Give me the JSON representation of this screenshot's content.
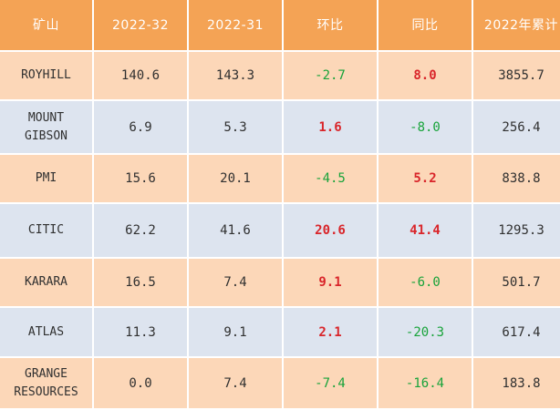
{
  "table": {
    "headers": [
      "矿山",
      "2022-32",
      "2022-31",
      "环比",
      "同比",
      "2022年累计"
    ],
    "rows": [
      {
        "mine": [
          "ROYHILL"
        ],
        "w32": "140.6",
        "w31": "143.3",
        "wow": "-2.7",
        "wow_sign": "neg",
        "yoy": "8.0",
        "yoy_sign": "pos",
        "ytd": "3855.7"
      },
      {
        "mine": [
          "MOUNT",
          "GIBSON"
        ],
        "w32": "6.9",
        "w31": "5.3",
        "wow": "1.6",
        "wow_sign": "pos",
        "yoy": "-8.0",
        "yoy_sign": "neg",
        "ytd": "256.4"
      },
      {
        "mine": [
          "PMI"
        ],
        "w32": "15.6",
        "w31": "20.1",
        "wow": "-4.5",
        "wow_sign": "neg",
        "yoy": "5.2",
        "yoy_sign": "pos",
        "ytd": "838.8"
      },
      {
        "mine": [
          "CITIC"
        ],
        "w32": "62.2",
        "w31": "41.6",
        "wow": "20.6",
        "wow_sign": "pos",
        "yoy": "41.4",
        "yoy_sign": "pos",
        "ytd": "1295.3"
      },
      {
        "mine": [
          "KARARA"
        ],
        "w32": "16.5",
        "w31": "7.4",
        "wow": "9.1",
        "wow_sign": "pos",
        "yoy": "-6.0",
        "yoy_sign": "neg",
        "ytd": "501.7"
      },
      {
        "mine": [
          "ATLAS"
        ],
        "w32": "11.3",
        "w31": "9.1",
        "wow": "2.1",
        "wow_sign": "pos",
        "yoy": "-20.3",
        "yoy_sign": "neg",
        "ytd": "617.4"
      },
      {
        "mine": [
          "GRANGE",
          "RESOURCES"
        ],
        "w32": "0.0",
        "w31": "7.4",
        "wow": "-7.4",
        "wow_sign": "neg",
        "yoy": "-16.4",
        "yoy_sign": "neg",
        "ytd": "183.8"
      }
    ]
  },
  "colors": {
    "header_bg": "#f4a355",
    "row_odd_bg": "#fcd7b8",
    "row_even_bg": "#dde4ef",
    "positive_text": "#d9252a",
    "negative_text": "#18a33a"
  }
}
